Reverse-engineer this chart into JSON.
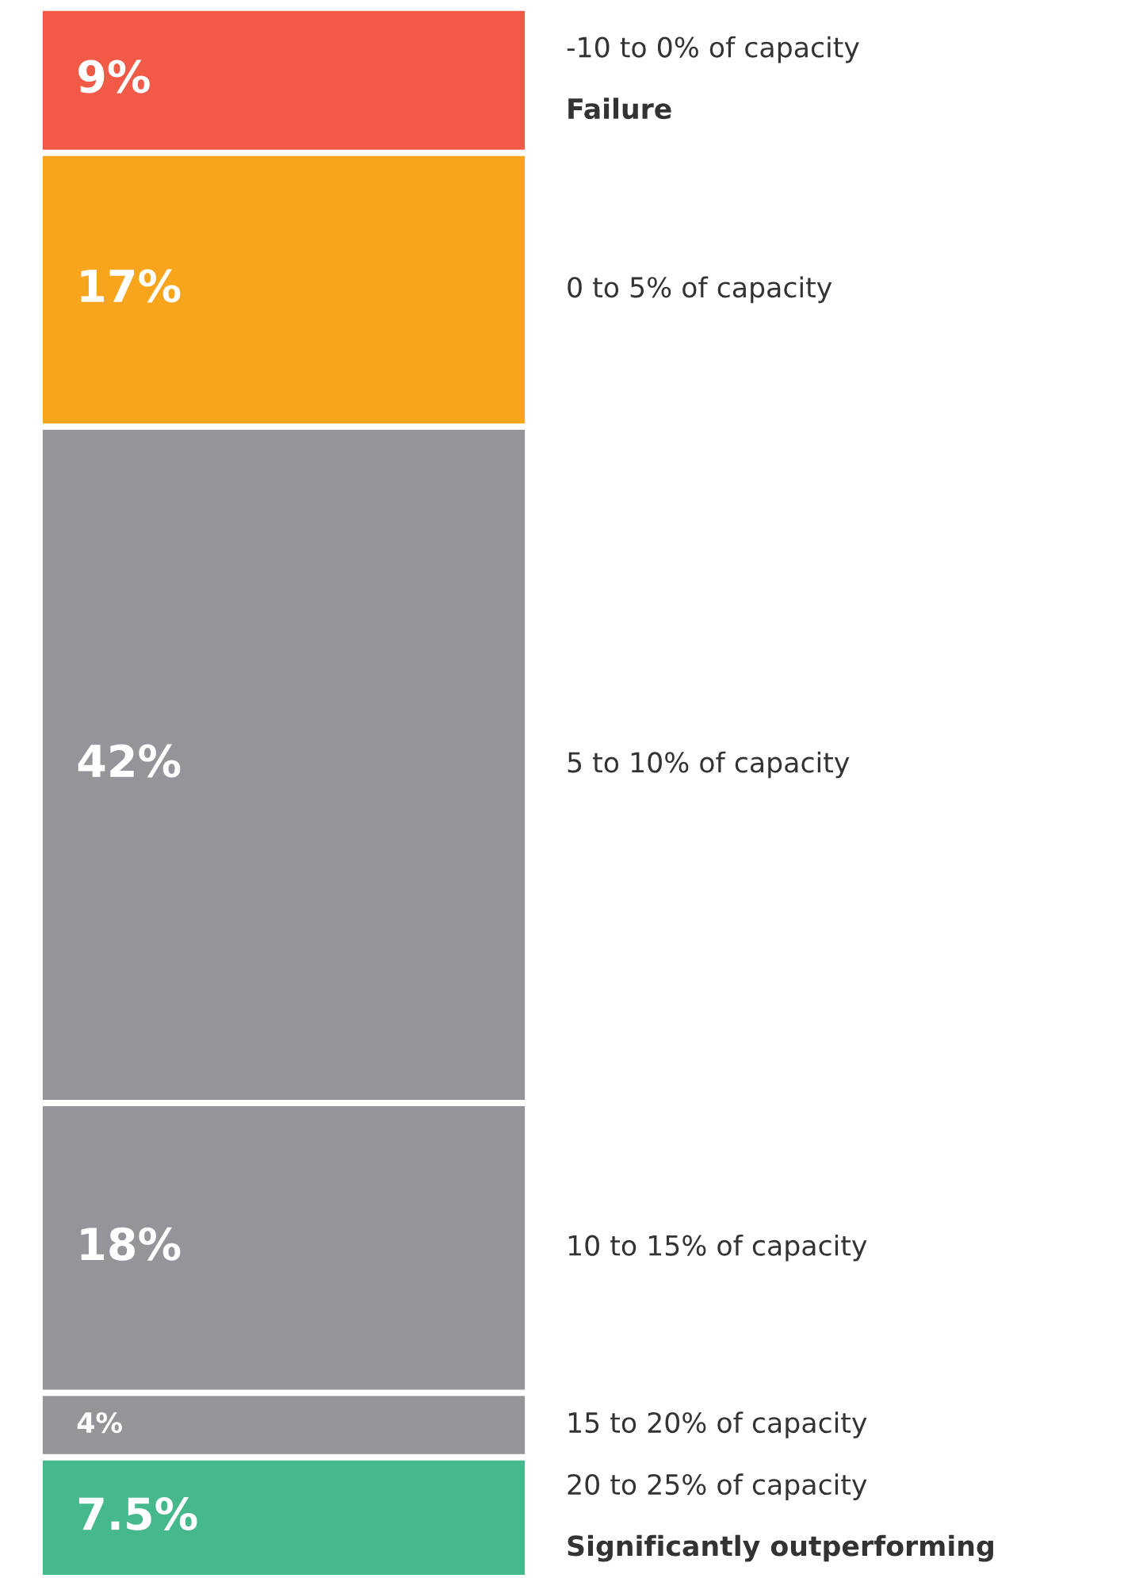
{
  "chart_data": {
    "type": "bar",
    "stacked": true,
    "categories": [
      null
    ],
    "legend": false,
    "series": [
      {
        "name": "20 to 25% of capacity\nSignificantly outperforming",
        "color": "#46b98c",
        "values": [
          7.5
        ],
        "value_labels": [
          "7.5%"
        ]
      },
      {
        "name": "15 to 20% of capacity",
        "color": "#939598",
        "values": [
          4
        ],
        "value_labels": [
          "4%"
        ]
      },
      {
        "name": "10 to 15% of capacity",
        "color": "#939598",
        "values": [
          18
        ],
        "value_labels": [
          "18%"
        ]
      },
      {
        "name": "5 to 10% of capacity",
        "color": "#939598",
        "values": [
          42
        ],
        "value_labels": [
          "42%"
        ]
      },
      {
        "name": "0 to 5% of capacity",
        "color": "#f7a51c",
        "values": [
          17
        ],
        "value_labels": [
          "17%"
        ]
      },
      {
        "name": "-10 to 0% of capacity\nFailure",
        "color": "#f05a46",
        "values": [
          9
        ],
        "value_labels": [
          "9%"
        ]
      }
    ]
  }
}
